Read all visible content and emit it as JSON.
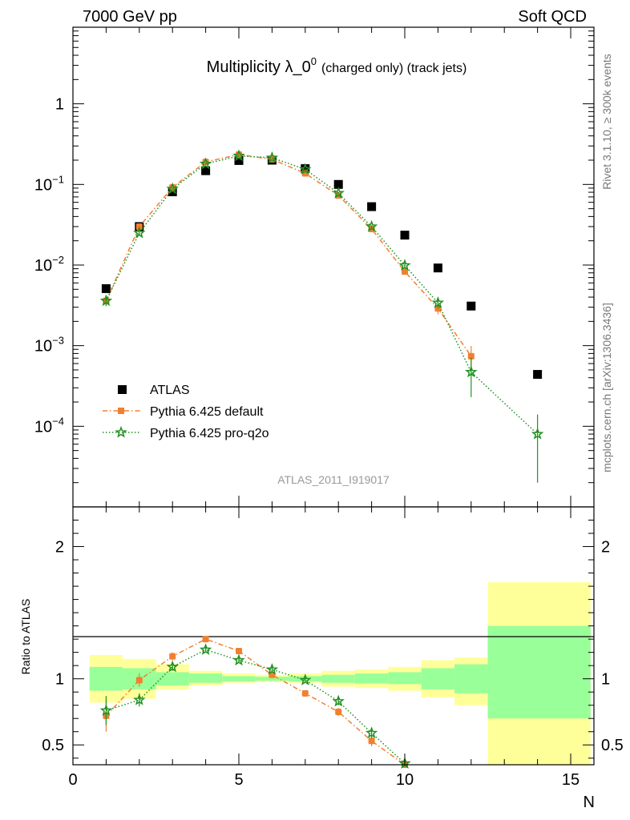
{
  "header": {
    "energy_label": "7000 GeV pp",
    "category_label": "Soft QCD"
  },
  "side": {
    "rivet_label": "Rivet 3.1.10, ≥ 300k events",
    "source_label": "mcplots.cern.ch [arXiv:1306.3436]"
  },
  "chart_data": {
    "type": "scatter",
    "title_main": "Multiplicity λ_0",
    "title_sup": "0",
    "title_suffix": "(charged only) (track jets)",
    "analysis_id": "ATLAS_2011_I919017",
    "xlabel": "N",
    "ylabel_ratio": "Ratio to ATLAS",
    "xlim": [
      0,
      15.7
    ],
    "ylim_main_log10": [
      -5.0,
      0.95
    ],
    "ylim_ratio": [
      0.35,
      2.3
    ],
    "xticks": [
      "0",
      "5",
      "10",
      "15"
    ],
    "yticks_main": [
      {
        "base": "1",
        "exp": ""
      },
      {
        "base": "10",
        "exp": "−1"
      },
      {
        "base": "10",
        "exp": "−2"
      },
      {
        "base": "10",
        "exp": "−3"
      },
      {
        "base": "10",
        "exp": "−4"
      }
    ],
    "yticks_ratio": [
      "0.5",
      "1",
      "2"
    ],
    "legend": {
      "position": "bottom-left"
    },
    "series": [
      {
        "name": "ATLAS",
        "color": "#000000",
        "marker": "square",
        "x": [
          1,
          2,
          3,
          4,
          5,
          6,
          7,
          8,
          9,
          10,
          11,
          12,
          14
        ],
        "y": [
          0.0051,
          0.03,
          0.081,
          0.148,
          0.198,
          0.2,
          0.157,
          0.1,
          0.053,
          0.0235,
          0.0092,
          0.0031,
          0.00044
        ]
      },
      {
        "name": "Pythia 6.425 default",
        "color": "#f08030",
        "marker": "circle",
        "line": "dashdot",
        "x": [
          1,
          2,
          3,
          4,
          5,
          6,
          7,
          8,
          9,
          10,
          11,
          12
        ],
        "y": [
          0.0036,
          0.03,
          0.092,
          0.19,
          0.235,
          0.205,
          0.137,
          0.073,
          0.028,
          0.0083,
          0.0029,
          0.00074
        ],
        "yerr": [
          0.0005,
          0.0015,
          0.0022,
          0.003,
          0.003,
          0.003,
          0.003,
          0.002,
          0.0012,
          0.0006,
          0.00045,
          0.00025
        ],
        "ratio": [
          0.72,
          0.99,
          1.17,
          1.3,
          1.21,
          1.03,
          0.89,
          0.75,
          0.53,
          0.35
        ],
        "ratio_err": [
          0.12,
          0.05,
          0.03,
          0.02,
          0.02,
          0.02,
          0.02,
          0.03,
          0.04,
          0.03
        ]
      },
      {
        "name": "Pythia 6.425 pro-q2o",
        "color": "#209020",
        "marker": "star",
        "line": "dotted",
        "x": [
          1,
          2,
          3,
          4,
          5,
          6,
          7,
          8,
          9,
          10,
          11,
          12,
          14
        ],
        "y": [
          0.0036,
          0.025,
          0.088,
          0.18,
          0.226,
          0.214,
          0.154,
          0.078,
          0.03,
          0.0099,
          0.0034,
          0.00047,
          8e-05
        ],
        "yerr": [
          0.0005,
          0.0013,
          0.002,
          0.003,
          0.003,
          0.003,
          0.003,
          0.002,
          0.0012,
          0.0007,
          0.0005,
          0.00024,
          6e-05
        ],
        "ratio": [
          0.76,
          0.84,
          1.09,
          1.22,
          1.14,
          1.07,
          0.99,
          0.83,
          0.59,
          0.36
        ],
        "ratio_err": [
          0.11,
          0.05,
          0.03,
          0.02,
          0.02,
          0.02,
          0.02,
          0.03,
          0.04,
          0.03
        ]
      }
    ],
    "uncertainty_bands": {
      "inner_color": "#99ff99",
      "outer_color": "#ffff99",
      "bins": [
        {
          "lo": 0.5,
          "hi": 1.5,
          "inner": [
            0.91,
            1.09
          ],
          "outer": [
            0.82,
            1.18
          ]
        },
        {
          "lo": 1.5,
          "hi": 2.5,
          "inner": [
            0.92,
            1.08
          ],
          "outer": [
            0.85,
            1.15
          ]
        },
        {
          "lo": 2.5,
          "hi": 3.5,
          "inner": [
            0.95,
            1.05
          ],
          "outer": [
            0.92,
            1.11
          ]
        },
        {
          "lo": 3.5,
          "hi": 4.5,
          "inner": [
            0.97,
            1.04
          ],
          "outer": [
            0.95,
            1.06
          ]
        },
        {
          "lo": 4.5,
          "hi": 5.5,
          "inner": [
            0.98,
            1.02
          ],
          "outer": [
            0.97,
            1.04
          ]
        },
        {
          "lo": 5.5,
          "hi": 6.5,
          "inner": [
            0.985,
            1.015
          ],
          "outer": [
            0.975,
            1.03
          ]
        },
        {
          "lo": 6.5,
          "hi": 7.5,
          "inner": [
            0.98,
            1.02
          ],
          "outer": [
            0.97,
            1.04
          ]
        },
        {
          "lo": 7.5,
          "hi": 8.5,
          "inner": [
            0.97,
            1.03
          ],
          "outer": [
            0.94,
            1.06
          ]
        },
        {
          "lo": 8.5,
          "hi": 9.5,
          "inner": [
            0.965,
            1.04
          ],
          "outer": [
            0.93,
            1.07
          ]
        },
        {
          "lo": 9.5,
          "hi": 10.5,
          "inner": [
            0.96,
            1.05
          ],
          "outer": [
            0.91,
            1.09
          ]
        },
        {
          "lo": 10.5,
          "hi": 11.5,
          "inner": [
            0.92,
            1.08
          ],
          "outer": [
            0.86,
            1.14
          ]
        },
        {
          "lo": 11.5,
          "hi": 12.5,
          "inner": [
            0.89,
            1.11
          ],
          "outer": [
            0.8,
            1.16
          ]
        },
        {
          "lo": 12.5,
          "hi": 15.6,
          "inner": [
            0.7,
            1.4
          ],
          "outer": [
            0.3,
            1.73
          ]
        }
      ]
    }
  }
}
